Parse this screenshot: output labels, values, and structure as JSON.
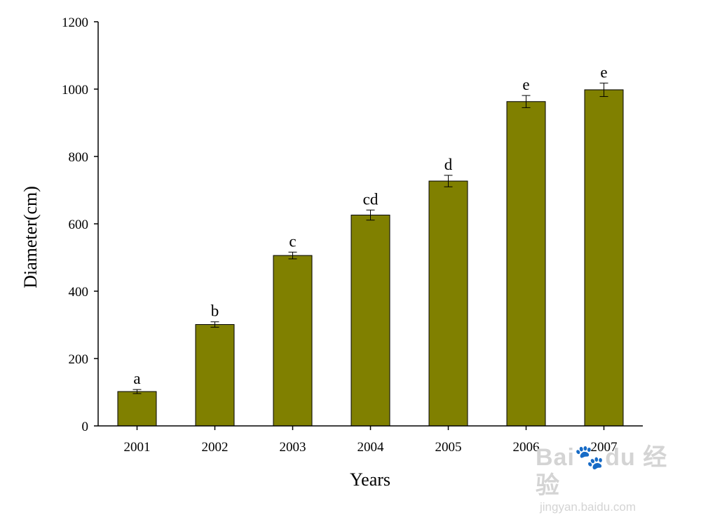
{
  "chart_data": {
    "type": "bar",
    "categories": [
      "2001",
      "2002",
      "2003",
      "2004",
      "2005",
      "2006",
      "2007"
    ],
    "values": [
      102,
      301,
      506,
      626,
      727,
      963,
      998
    ],
    "errors": [
      6,
      8,
      10,
      15,
      17,
      18,
      20
    ],
    "significance_labels": [
      "a",
      "b",
      "c",
      "cd",
      "d",
      "e",
      "e"
    ],
    "xlabel": "Years",
    "ylabel": "Diameter(cm)",
    "ylim": [
      0,
      1200
    ],
    "yticks": [
      0,
      200,
      400,
      600,
      800,
      1000,
      1200
    ],
    "ytick_labels": [
      "0",
      "200",
      "400",
      "600",
      "800",
      "1000",
      "1200"
    ],
    "grid": false,
    "bar_color": "#808000",
    "error_color": "#000000"
  },
  "watermark": {
    "logo": "Bai🐾du 经验",
    "url": "jingyan.baidu.com"
  }
}
